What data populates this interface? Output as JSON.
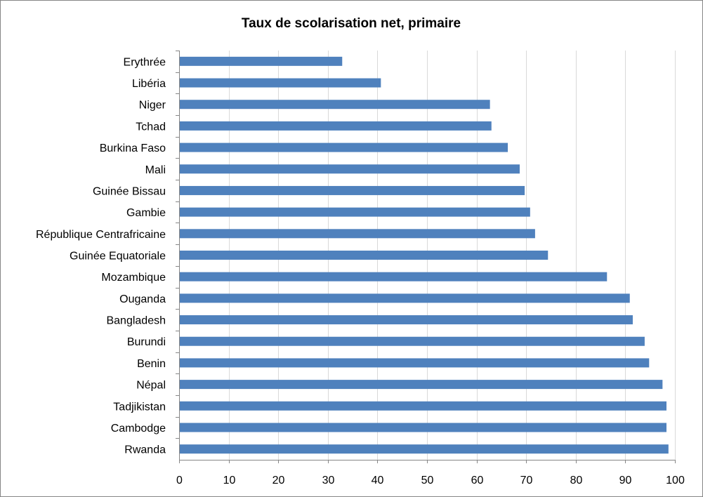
{
  "chart_data": {
    "type": "bar",
    "orientation": "horizontal",
    "title": "Taux de scolarisation net, primaire",
    "xlabel": "",
    "ylabel": "",
    "xlim": [
      0,
      100
    ],
    "x_ticks": [
      "0",
      "10",
      "20",
      "30",
      "40",
      "50",
      "60",
      "70",
      "80",
      "90",
      "100"
    ],
    "grid": "vertical",
    "legend": "none",
    "bar_color": "#4F81BD",
    "categories": [
      "Erythrée",
      "Libéria",
      "Niger",
      "Tchad",
      "Burkina Faso",
      "Mali",
      "Guinée Bissau",
      "Gambie",
      "République Centrafricaine",
      "Guinée Equatoriale",
      "Mozambique",
      "Ouganda",
      "Bangladesh",
      "Burundi",
      "Benin",
      "Népal",
      "Tadjikistan",
      "Cambodge",
      "Rwanda"
    ],
    "values": [
      32.9,
      40.7,
      62.7,
      63.0,
      66.3,
      68.7,
      69.7,
      70.8,
      71.8,
      74.4,
      86.3,
      90.9,
      91.5,
      93.9,
      94.8,
      97.5,
      98.3,
      98.3,
      98.7
    ]
  }
}
